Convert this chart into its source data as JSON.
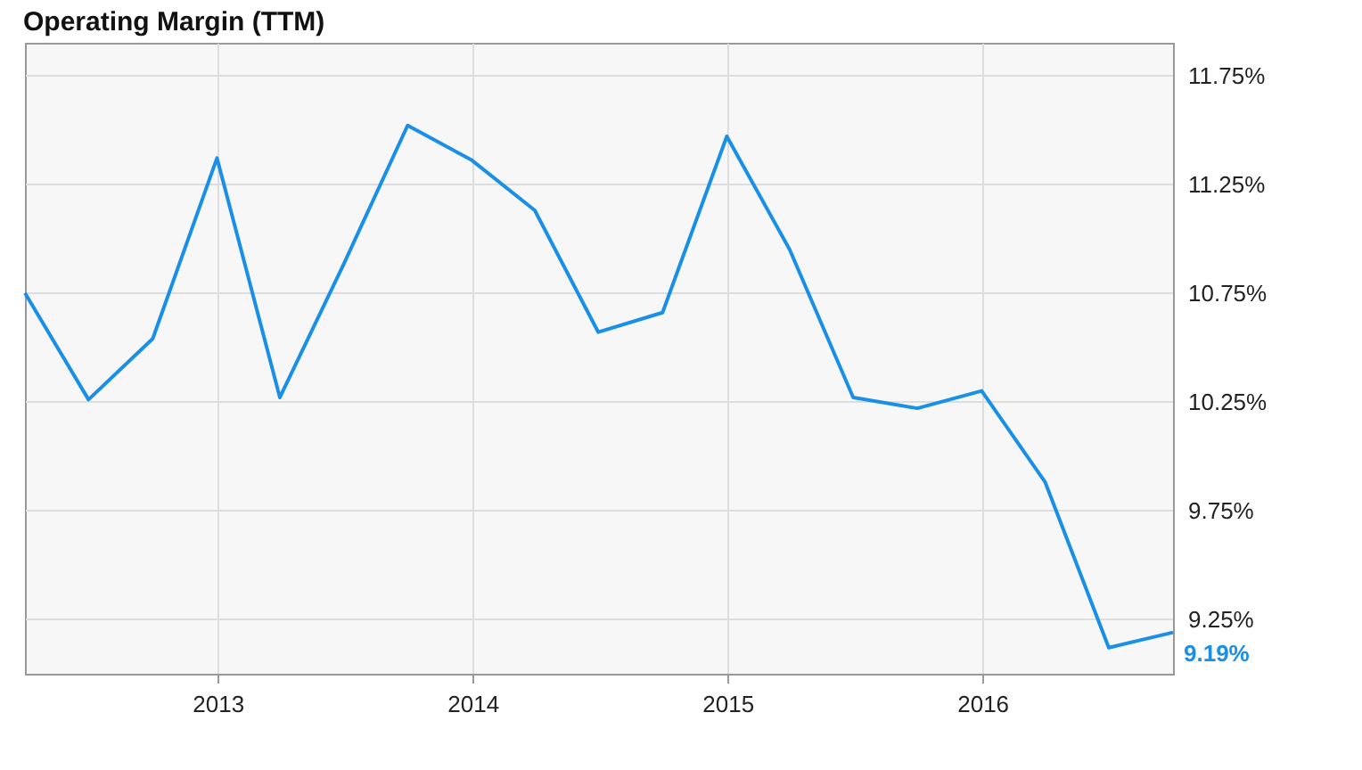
{
  "chart_data": {
    "type": "line",
    "title": "Operating Margin (TTM)",
    "x": [
      "2012-03-31",
      "2012-06-30",
      "2012-09-30",
      "2012-12-31",
      "2013-03-31",
      "2013-06-30",
      "2013-09-30",
      "2013-12-31",
      "2014-03-31",
      "2014-06-30",
      "2014-09-30",
      "2014-12-31",
      "2015-03-31",
      "2015-06-30",
      "2015-09-30",
      "2015-12-31",
      "2016-03-31",
      "2016-06-30",
      "2016-09-30"
    ],
    "series": [
      {
        "color": "#1a8fe8",
        "values": [
          10.75,
          10.26,
          10.54,
          11.37,
          10.27,
          10.88,
          11.52,
          11.36,
          11.13,
          10.57,
          10.66,
          11.47,
          10.95,
          10.27,
          10.22,
          10.3,
          9.88,
          9.12,
          9.19
        ],
        "value_labels": [
          null,
          null,
          null,
          null,
          null,
          null,
          null,
          null,
          null,
          null,
          null,
          null,
          null,
          null,
          null,
          null,
          null,
          null,
          "9.19%"
        ]
      }
    ],
    "xlim": [
      "2012-03-31",
      "2016-09-30"
    ],
    "xticks": [
      "2013",
      "2014",
      "2015",
      "2016"
    ],
    "ylim": [
      9.0,
      11.9
    ],
    "yticks": [
      {
        "value": 9.25,
        "label": "9.25%"
      },
      {
        "value": 9.75,
        "label": "9.75%"
      },
      {
        "value": 10.25,
        "label": "10.25%"
      },
      {
        "value": 10.75,
        "label": "10.75%"
      },
      {
        "value": 11.25,
        "label": "11.25%"
      },
      {
        "value": 11.75,
        "label": "11.75%"
      }
    ],
    "grid": true
  }
}
